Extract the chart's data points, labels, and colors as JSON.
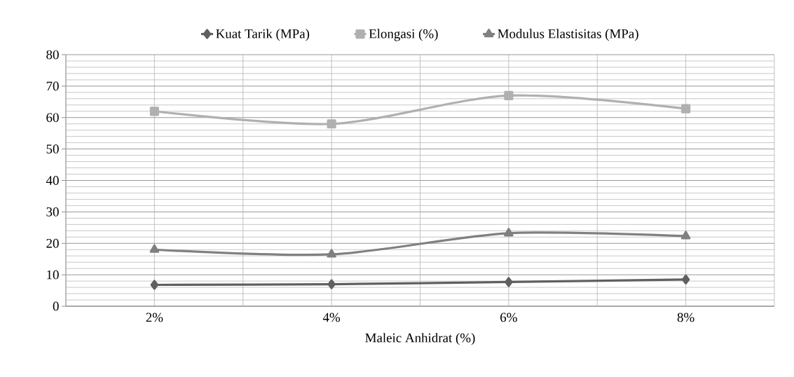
{
  "chart_data": {
    "type": "line",
    "xlabel": "Maleic Anhidrat (%)",
    "categories": [
      "2%",
      "4%",
      "6%",
      "8%"
    ],
    "series": [
      {
        "name": "Kuat Tarik (MPa)",
        "color": "#606060",
        "marker": "diamond",
        "values": [
          6.8,
          7.0,
          7.7,
          8.5
        ]
      },
      {
        "name": "Elongasi (%)",
        "color": "#b0b0b0",
        "marker": "square",
        "values": [
          62.0,
          58.0,
          67.0,
          62.8
        ]
      },
      {
        "name": "Modulus Elastisitas (MPa)",
        "color": "#808080",
        "marker": "triangle",
        "values": [
          18.0,
          16.5,
          23.2,
          22.3
        ]
      }
    ],
    "ylim": [
      0,
      80
    ],
    "yticks": [
      0,
      10,
      20,
      30,
      40,
      50,
      60,
      70,
      80
    ],
    "grid": true,
    "legend": "top"
  }
}
